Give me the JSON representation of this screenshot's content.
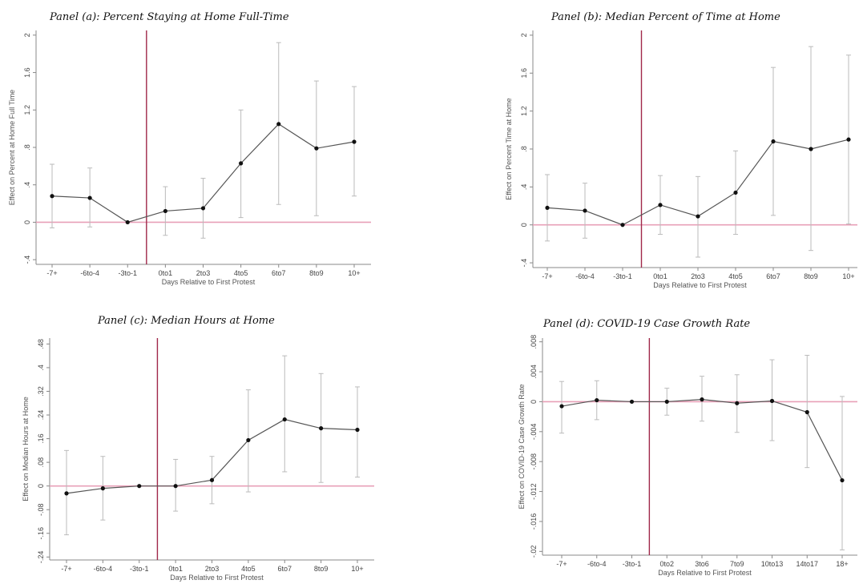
{
  "chart_data": [
    {
      "id": "a",
      "type": "line",
      "title": "Panel (a): Percent Staying at Home Full-Time",
      "xlabel": "Days Relative to First Protest",
      "ylabel": "Effect on Percent at Home Full Time",
      "categories": [
        "-7+",
        "-6to-4",
        "-3to-1",
        "0to1",
        "2to3",
        "4to5",
        "6to7",
        "8to9",
        "10+"
      ],
      "y_ticks": [
        -0.4,
        0,
        0.4,
        0.8,
        1.2,
        1.6,
        2
      ],
      "y_tick_labels": [
        "-.4",
        "0",
        ".4",
        ".8",
        "1.2",
        "1.6",
        "2"
      ],
      "ylim": [
        -0.45,
        2.05
      ],
      "event_line_after": "-3to-1",
      "series": [
        {
          "values": [
            0.28,
            0.26,
            0.0,
            0.12,
            0.15,
            0.63,
            1.05,
            0.79,
            0.86
          ],
          "ci_low": [
            -0.06,
            -0.05,
            0.0,
            -0.14,
            -0.17,
            0.05,
            0.19,
            0.07,
            0.28
          ],
          "ci_high": [
            0.62,
            0.58,
            0.0,
            0.38,
            0.47,
            1.2,
            1.92,
            1.51,
            1.45
          ]
        }
      ]
    },
    {
      "id": "b",
      "type": "line",
      "title": "Panel (b): Median Percent of Time at Home",
      "xlabel": "Days Relative to First Protest",
      "ylabel": "Effect on Percent Time at Home",
      "categories": [
        "-7+",
        "-6to-4",
        "-3to-1",
        "0to1",
        "2to3",
        "4to5",
        "6to7",
        "8to9",
        "10+"
      ],
      "y_ticks": [
        -0.4,
        0,
        0.4,
        0.8,
        1.2,
        1.6,
        2
      ],
      "y_tick_labels": [
        "-.4",
        "0",
        ".4",
        ".8",
        "1.2",
        "1.6",
        "2"
      ],
      "ylim": [
        -0.45,
        2.05
      ],
      "event_line_after": "-3to-1",
      "series": [
        {
          "values": [
            0.18,
            0.15,
            0.0,
            0.21,
            0.09,
            0.34,
            0.88,
            0.8,
            0.9
          ],
          "ci_low": [
            -0.17,
            -0.14,
            0.0,
            -0.1,
            -0.34,
            -0.1,
            0.1,
            -0.27,
            0.01
          ],
          "ci_high": [
            0.53,
            0.44,
            0.0,
            0.52,
            0.51,
            0.78,
            1.66,
            1.88,
            1.79
          ]
        }
      ]
    },
    {
      "id": "c",
      "type": "line",
      "title": "Panel (c): Median Hours at Home",
      "xlabel": "Days Relative to First Protest",
      "ylabel": "Effect on Median Hours at Home",
      "categories": [
        "-7+",
        "-6to-4",
        "-3to-1",
        "0to1",
        "2to3",
        "4to5",
        "6to7",
        "8to9",
        "10+"
      ],
      "y_ticks": [
        -0.24,
        -0.16,
        -0.08,
        0,
        0.08,
        0.16,
        0.24,
        0.32,
        0.4,
        0.48
      ],
      "y_tick_labels": [
        "-.24",
        "-.16",
        "-.08",
        "0",
        ".08",
        ".16",
        ".24",
        ".32",
        ".4",
        ".48"
      ],
      "ylim": [
        -0.25,
        0.5
      ],
      "event_line_after": "-3to-1",
      "series": [
        {
          "values": [
            -0.025,
            -0.008,
            0.0,
            0.0,
            0.02,
            0.155,
            0.225,
            0.195,
            0.19
          ],
          "ci_low": [
            -0.165,
            -0.115,
            0.0,
            -0.085,
            -0.06,
            -0.02,
            0.048,
            0.012,
            0.03
          ],
          "ci_high": [
            0.12,
            0.1,
            0.0,
            0.09,
            0.1,
            0.325,
            0.44,
            0.38,
            0.335
          ]
        }
      ]
    },
    {
      "id": "d",
      "type": "line",
      "title": "Panel (d): COVID-19 Case Growth Rate",
      "xlabel": "Days Relative to First Protest",
      "ylabel": "Effect on COVID-19 Case Growth Rate",
      "categories": [
        "-7+",
        "-6to-4",
        "-3to-1",
        "0to2",
        "3to6",
        "7to9",
        "10to13",
        "14to17",
        "18+"
      ],
      "y_ticks": [
        -0.02,
        -0.016,
        -0.012,
        -0.008,
        -0.004,
        0,
        0.004,
        0.008
      ],
      "y_tick_labels": [
        "-.02",
        "-.016",
        "-.012",
        "-.008",
        "-.004",
        "0",
        ".004",
        ".008"
      ],
      "ylim": [
        -0.0205,
        0.0085
      ],
      "event_line_after": "-3to-1",
      "series": [
        {
          "values": [
            -0.0006,
            0.0002,
            0.0,
            0.0,
            0.0003,
            -0.0002,
            0.0001,
            -0.0014,
            -0.0105
          ],
          "ci_low": [
            -0.0042,
            -0.0024,
            0.0,
            -0.0018,
            -0.0026,
            -0.0041,
            -0.0052,
            -0.0088,
            -0.0198
          ],
          "ci_high": [
            0.0027,
            0.0028,
            0.0,
            0.0018,
            0.0034,
            0.0036,
            0.0056,
            0.0062,
            0.0007
          ]
        }
      ]
    }
  ],
  "colors": {
    "zero_line": "#e8a0b8",
    "event_line": "#a0284a",
    "series_line": "#555555",
    "ci": "#bbbbbb",
    "marker": "#111111",
    "axis": "#888888"
  }
}
